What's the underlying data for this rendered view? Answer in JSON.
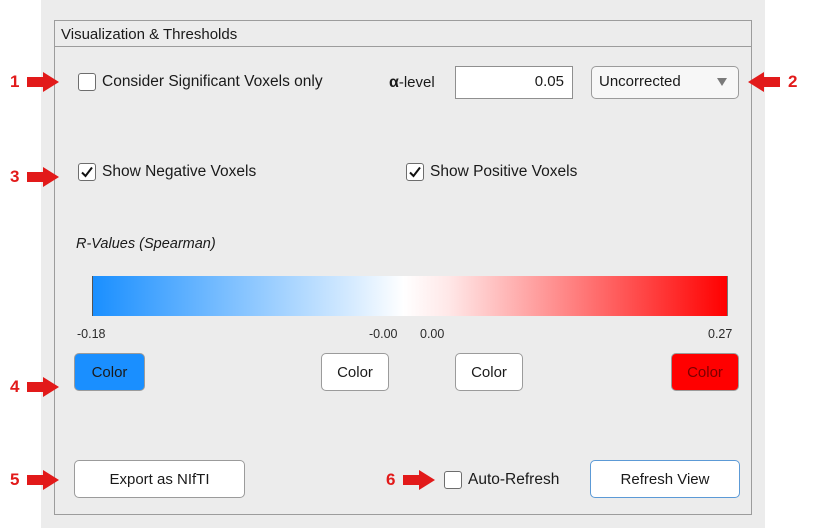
{
  "panel": {
    "title": "Visualization & Thresholds"
  },
  "markers": [
    "1",
    "2",
    "3",
    "4",
    "5",
    "6"
  ],
  "significance": {
    "checkbox_label": "Consider Significant Voxels only",
    "checked": false,
    "alpha_label": "α-level",
    "alpha_value": "0.05",
    "correction_selected": "Uncorrected"
  },
  "voxels": {
    "show_negative_label": "Show Negative Voxels",
    "show_negative_checked": true,
    "show_positive_label": "Show Positive Voxels",
    "show_positive_checked": true
  },
  "colormap": {
    "title": "R-Values (Spearman)",
    "ticks": [
      "-0.18",
      "-0.00",
      "0.00",
      "0.27"
    ],
    "colors": {
      "negative_min": "#1a8fff",
      "negative_zero": "#ffffff",
      "positive_zero": "#ffffff",
      "positive_max": "#ff0000"
    },
    "color_button_label": "Color"
  },
  "actions": {
    "export_label": "Export as NIfTI",
    "auto_refresh_label": "Auto-Refresh",
    "auto_refresh_checked": false,
    "refresh_label": "Refresh View"
  }
}
